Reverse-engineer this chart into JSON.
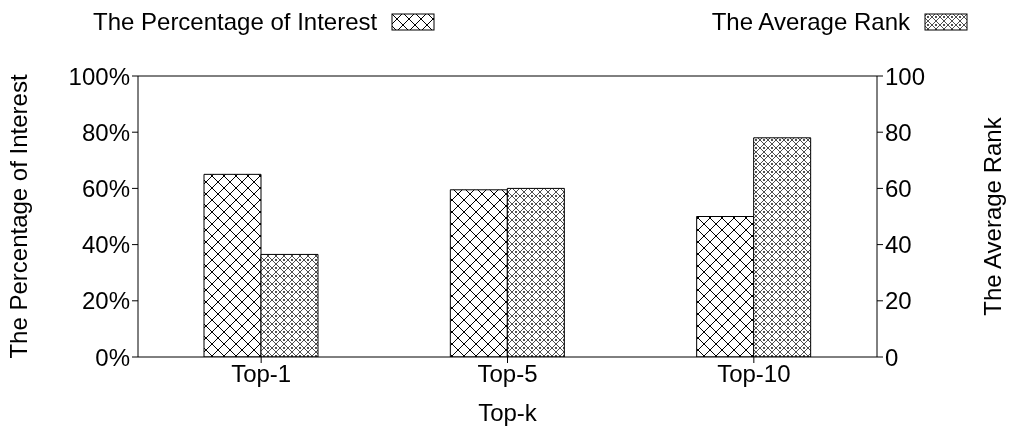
{
  "chart_data": {
    "type": "bar",
    "xlabel": "Top-k",
    "ylabel": "The Percentage of Interest",
    "y2label": "The Average Rank",
    "categories": [
      "Top-1",
      "Top-5",
      "Top-10"
    ],
    "series": [
      {
        "name": "The Percentage of Interest",
        "color": "#000000",
        "values": [
          65,
          59.5,
          50
        ]
      },
      {
        "name": "The Average Rank",
        "color": "#000000",
        "values": [
          36.5,
          60,
          78
        ],
        "axis": "y2"
      }
    ],
    "ylim": [
      0,
      100
    ],
    "yticks": [
      {
        "value": 0,
        "label": "0%"
      },
      {
        "value": 20,
        "label": "20%"
      },
      {
        "value": 40,
        "label": "40%"
      },
      {
        "value": 60,
        "label": "60%"
      },
      {
        "value": 80,
        "label": "80%"
      },
      {
        "value": 100,
        "label": "100%"
      }
    ],
    "y2lim": [
      0,
      100
    ],
    "y2ticks": [
      0,
      20,
      40,
      60,
      80,
      100
    ],
    "legend": "top",
    "grid": false
  }
}
